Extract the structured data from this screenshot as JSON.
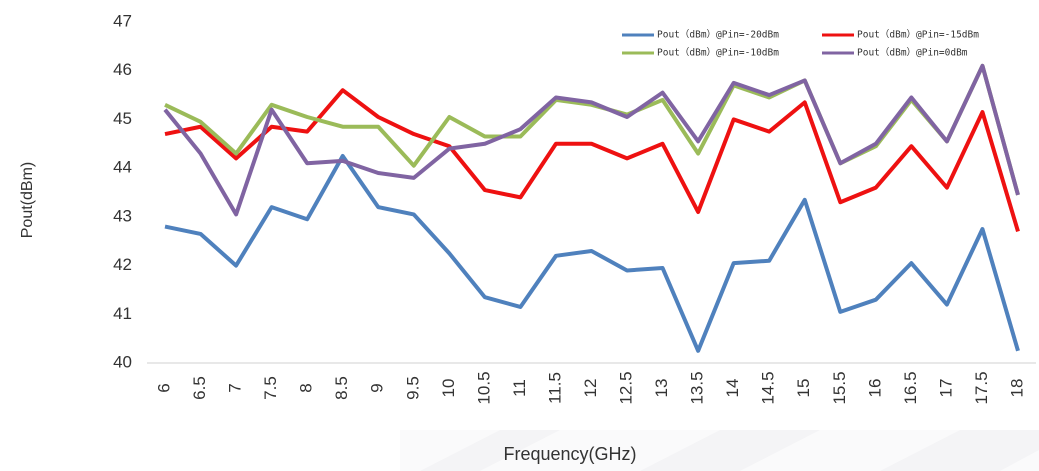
{
  "chart_data": {
    "type": "line",
    "x_label": "Frequency(GHz)",
    "y_label": "Pout(dBm)",
    "categories": [
      "6",
      "6.5",
      "7",
      "7.5",
      "8",
      "8.5",
      "9",
      "9.5",
      "10",
      "10.5",
      "11",
      "11.5",
      "12",
      "12.5",
      "13",
      "13.5",
      "14",
      "14.5",
      "15",
      "15.5",
      "16",
      "16.5",
      "17",
      "17.5",
      "18"
    ],
    "ylim": [
      40,
      47
    ],
    "yticks": [
      40,
      41,
      42,
      43,
      44,
      45,
      46,
      47
    ],
    "legend": "top-right",
    "series": [
      {
        "name": "Pout（dBm）@Pin=-20dBm",
        "color": "#4f81bd",
        "values": [
          42.8,
          42.65,
          42.0,
          43.2,
          42.95,
          44.25,
          43.2,
          43.05,
          42.25,
          41.35,
          41.15,
          42.2,
          42.3,
          41.9,
          41.95,
          40.25,
          42.05,
          42.1,
          43.35,
          41.05,
          41.3,
          42.05,
          41.2,
          42.75,
          40.25
        ]
      },
      {
        "name": "Pout（dBm）@Pin=-15dBm",
        "color": "#ee1111",
        "values": [
          44.7,
          44.85,
          44.2,
          44.85,
          44.75,
          45.6,
          45.05,
          44.7,
          44.45,
          43.55,
          43.4,
          44.5,
          44.5,
          44.2,
          44.5,
          43.1,
          45.0,
          44.75,
          45.35,
          43.3,
          43.6,
          44.45,
          43.6,
          45.15,
          42.7
        ]
      },
      {
        "name": "Pout（dBm）@Pin=-10dBm",
        "color": "#9bbb59",
        "values": [
          45.3,
          44.95,
          44.3,
          45.3,
          45.05,
          44.85,
          44.85,
          44.05,
          45.05,
          44.65,
          44.65,
          45.4,
          45.3,
          45.1,
          45.4,
          44.3,
          45.7,
          45.45,
          45.8,
          44.1,
          44.45,
          45.4,
          44.55,
          46.1,
          43.45
        ]
      },
      {
        "name": "Pout（dBm）@Pin=0dBm",
        "color": "#8064a2",
        "values": [
          45.2,
          44.3,
          43.05,
          45.2,
          44.1,
          44.15,
          43.9,
          43.8,
          44.4,
          44.5,
          44.8,
          45.45,
          45.35,
          45.05,
          45.55,
          44.55,
          45.75,
          45.5,
          45.8,
          44.1,
          44.5,
          45.45,
          44.55,
          46.1,
          43.45
        ]
      }
    ]
  }
}
